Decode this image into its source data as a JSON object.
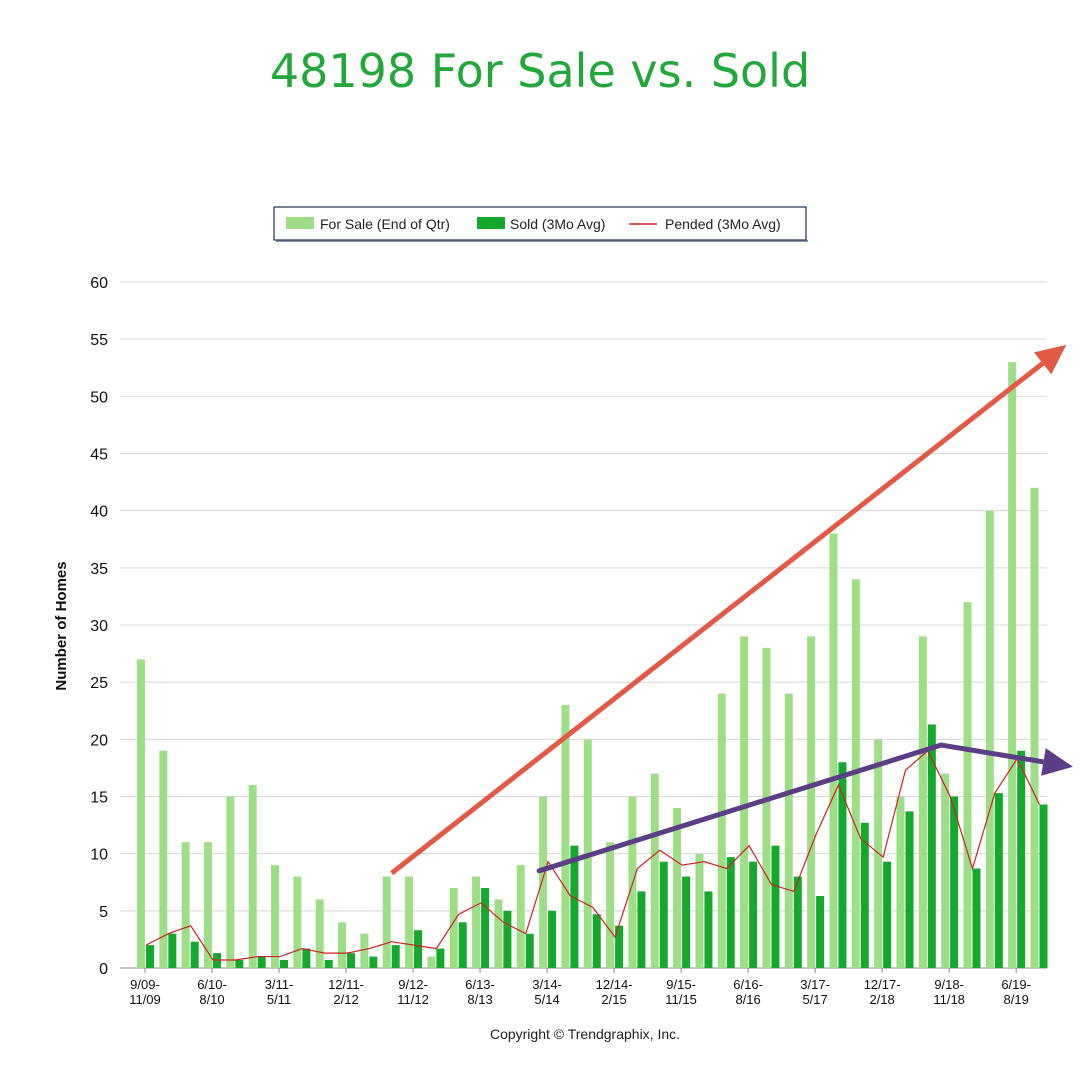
{
  "title": "48198 For Sale vs. Sold",
  "copyright": "Copyright © Trendgraphix, Inc.",
  "colors": {
    "for_sale": "#9ede87",
    "sold": "#14a82c",
    "pended": "#cc2222",
    "trend_up": "#e25a45",
    "trend_flat": "#5b3e85",
    "title": "#22a83a"
  },
  "chart_data": {
    "type": "bar",
    "ylabel": "Number of Homes",
    "xlabel": "",
    "ylim": [
      0,
      60
    ],
    "yticks": [
      0,
      5,
      10,
      15,
      20,
      25,
      30,
      35,
      40,
      45,
      50,
      55,
      60
    ],
    "grid": true,
    "legend_position": "top",
    "x_tick_labels": [
      {
        "index": 0,
        "line1": "9/09-",
        "line2": "11/09"
      },
      {
        "index": 3,
        "line1": "6/10-",
        "line2": "8/10"
      },
      {
        "index": 6,
        "line1": "3/11-",
        "line2": "5/11"
      },
      {
        "index": 9,
        "line1": "12/11-",
        "line2": "2/12"
      },
      {
        "index": 12,
        "line1": "9/12-",
        "line2": "11/12"
      },
      {
        "index": 15,
        "line1": "6/13-",
        "line2": "8/13"
      },
      {
        "index": 18,
        "line1": "3/14-",
        "line2": "5/14"
      },
      {
        "index": 21,
        "line1": "12/14-",
        "line2": "2/15"
      },
      {
        "index": 24,
        "line1": "9/15-",
        "line2": "11/15"
      },
      {
        "index": 27,
        "line1": "6/16-",
        "line2": "8/16"
      },
      {
        "index": 30,
        "line1": "3/17-",
        "line2": "5/17"
      },
      {
        "index": 33,
        "line1": "12/17-",
        "line2": "2/18"
      },
      {
        "index": 36,
        "line1": "9/18-",
        "line2": "11/18"
      },
      {
        "index": 39,
        "line1": "6/19-",
        "line2": "8/19"
      }
    ],
    "series": [
      {
        "name": "For Sale (End of Qtr)",
        "kind": "bar",
        "values": [
          27,
          19,
          11,
          11,
          15,
          16,
          9,
          8,
          6,
          4,
          3,
          8,
          8,
          1,
          7,
          8,
          6,
          9,
          15,
          23,
          20,
          11,
          15,
          17,
          14,
          10,
          24,
          29,
          28,
          24,
          29,
          38,
          34,
          20,
          15,
          29,
          17,
          32,
          40,
          53,
          42
        ]
      },
      {
        "name": "Sold (3Mo Avg)",
        "kind": "bar",
        "values": [
          2,
          3,
          2.3,
          1.3,
          0.7,
          1,
          0.7,
          1.7,
          0.7,
          1.3,
          1,
          2,
          3.3,
          1.7,
          4,
          7,
          5,
          3,
          5,
          10.7,
          4.7,
          3.7,
          6.7,
          9.3,
          8,
          6.7,
          9.7,
          9.3,
          10.7,
          8,
          6.3,
          18,
          12.7,
          9.3,
          13.7,
          21.3,
          15,
          8.7,
          15.3,
          19,
          14.3
        ]
      },
      {
        "name": "Pended (3Mo Avg)",
        "kind": "line",
        "values": [
          2,
          3,
          3.7,
          0.7,
          0.7,
          1,
          1,
          1.7,
          1.3,
          1.3,
          1.7,
          2.3,
          2,
          1.7,
          4.7,
          5.7,
          4,
          3,
          9.3,
          6.3,
          5.3,
          2.7,
          8.7,
          10.3,
          9,
          9.3,
          8.7,
          10.7,
          7.3,
          6.7,
          11.7,
          16,
          11.3,
          9.7,
          17.3,
          19,
          15,
          8.7,
          15.3,
          18.3,
          14.3
        ]
      }
    ],
    "annotations": [
      {
        "kind": "trend-arrow",
        "color": "trend_up",
        "from": {
          "x_index": 11,
          "y": 8.3
        },
        "to": {
          "x_index": 41.2,
          "y": 54.5
        }
      },
      {
        "kind": "trend-line",
        "color": "trend_flat",
        "from": {
          "x_index": 17.6,
          "y": 8.5
        },
        "to": {
          "x_index": 35.6,
          "y": 19.5
        }
      },
      {
        "kind": "trend-arrow",
        "color": "trend_flat",
        "from": {
          "x_index": 35.6,
          "y": 19.5
        },
        "to": {
          "x_index": 41.5,
          "y": 17.6
        }
      }
    ]
  }
}
